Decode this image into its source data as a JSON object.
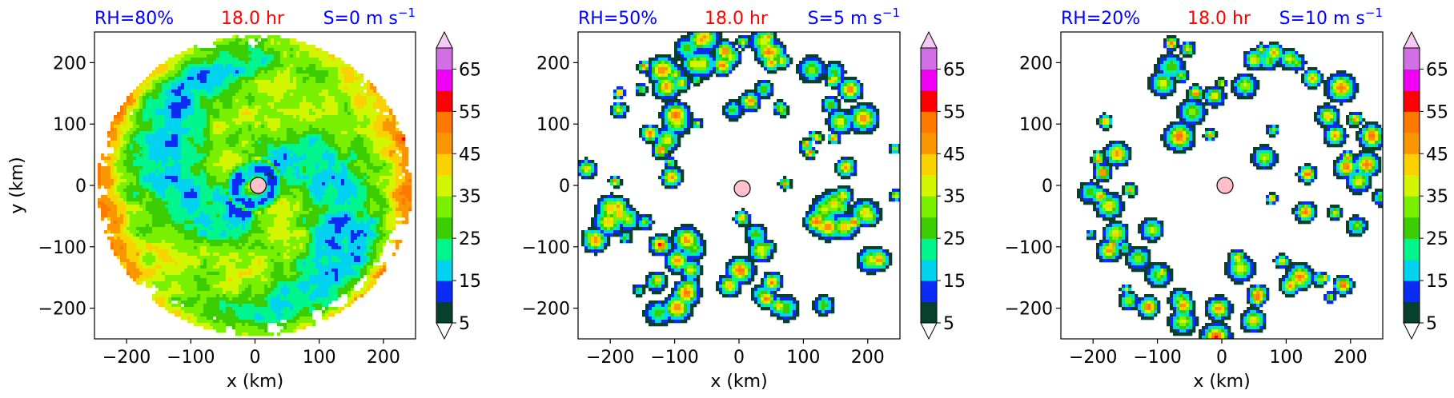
{
  "chart_data": [
    {
      "type": "heatmap",
      "title_left": "RH=80%",
      "title_center": "18.0 hr",
      "title_right_prefix": "S=0 m s",
      "title_right_exp": "−1",
      "xlabel": "x (km)",
      "ylabel": "y (km)",
      "xlim": [
        -250,
        250
      ],
      "ylim": [
        -250,
        250
      ],
      "xticks": [
        -200,
        -100,
        0,
        100,
        200
      ],
      "yticks": [
        -200,
        -100,
        0,
        100,
        200
      ],
      "xtick_labels": [
        "−200",
        "−100",
        "0",
        "100",
        "200"
      ],
      "ytick_labels": [
        "−200",
        "−100",
        "0",
        "100",
        "200"
      ],
      "center": [
        5,
        0
      ],
      "field": "spiral-dense"
    },
    {
      "type": "heatmap",
      "title_left": "RH=50%",
      "title_center": "18.0 hr",
      "title_right_prefix": "S=5 m s",
      "title_right_exp": "−1",
      "xlabel": "x (km)",
      "ylabel": "",
      "xlim": [
        -250,
        250
      ],
      "ylim": [
        -250,
        250
      ],
      "xticks": [
        -200,
        -100,
        0,
        100,
        200
      ],
      "yticks": [
        -200,
        -100,
        0,
        100,
        200
      ],
      "xtick_labels": [
        "−200",
        "−100",
        "0",
        "100",
        "200"
      ],
      "ytick_labels": [
        "−200",
        "−100",
        "0",
        "100",
        "200"
      ],
      "center": [
        5,
        -5
      ],
      "field": "cells-medium"
    },
    {
      "type": "heatmap",
      "title_left": "RH=20%",
      "title_center": "18.0 hr",
      "title_right_prefix": "S=10 m s",
      "title_right_exp": "−1",
      "xlabel": "x (km)",
      "ylabel": "",
      "xlim": [
        -250,
        250
      ],
      "ylim": [
        -250,
        250
      ],
      "xticks": [
        -200,
        -100,
        0,
        100,
        200
      ],
      "yticks": [
        -200,
        -100,
        0,
        100,
        200
      ],
      "xtick_labels": [
        "−200",
        "−100",
        "0",
        "100",
        "200"
      ],
      "ytick_labels": [
        "−200",
        "−100",
        "0",
        "100",
        "200"
      ],
      "center": [
        5,
        0
      ],
      "field": "cells-sparse"
    }
  ],
  "colorbar": {
    "levels": [
      5,
      10,
      15,
      20,
      25,
      30,
      35,
      40,
      45,
      50,
      55,
      60,
      65,
      70
    ],
    "colors": [
      "#08402e",
      "#0a2cf5",
      "#00d2f0",
      "#00f58c",
      "#3ccd00",
      "#78f000",
      "#d2f500",
      "#fad200",
      "#fa9600",
      "#ff7800",
      "#ff0000",
      "#f000f5",
      "#d26ee6",
      "#f5c8f5"
    ],
    "tick_labels": [
      "5",
      "15",
      "25",
      "35",
      "45",
      "55",
      "65"
    ],
    "extend": "both"
  },
  "colors": {
    "title_blue": "#0000ff",
    "title_red": "#ff0000",
    "center_marker": "#ffc0cb"
  }
}
